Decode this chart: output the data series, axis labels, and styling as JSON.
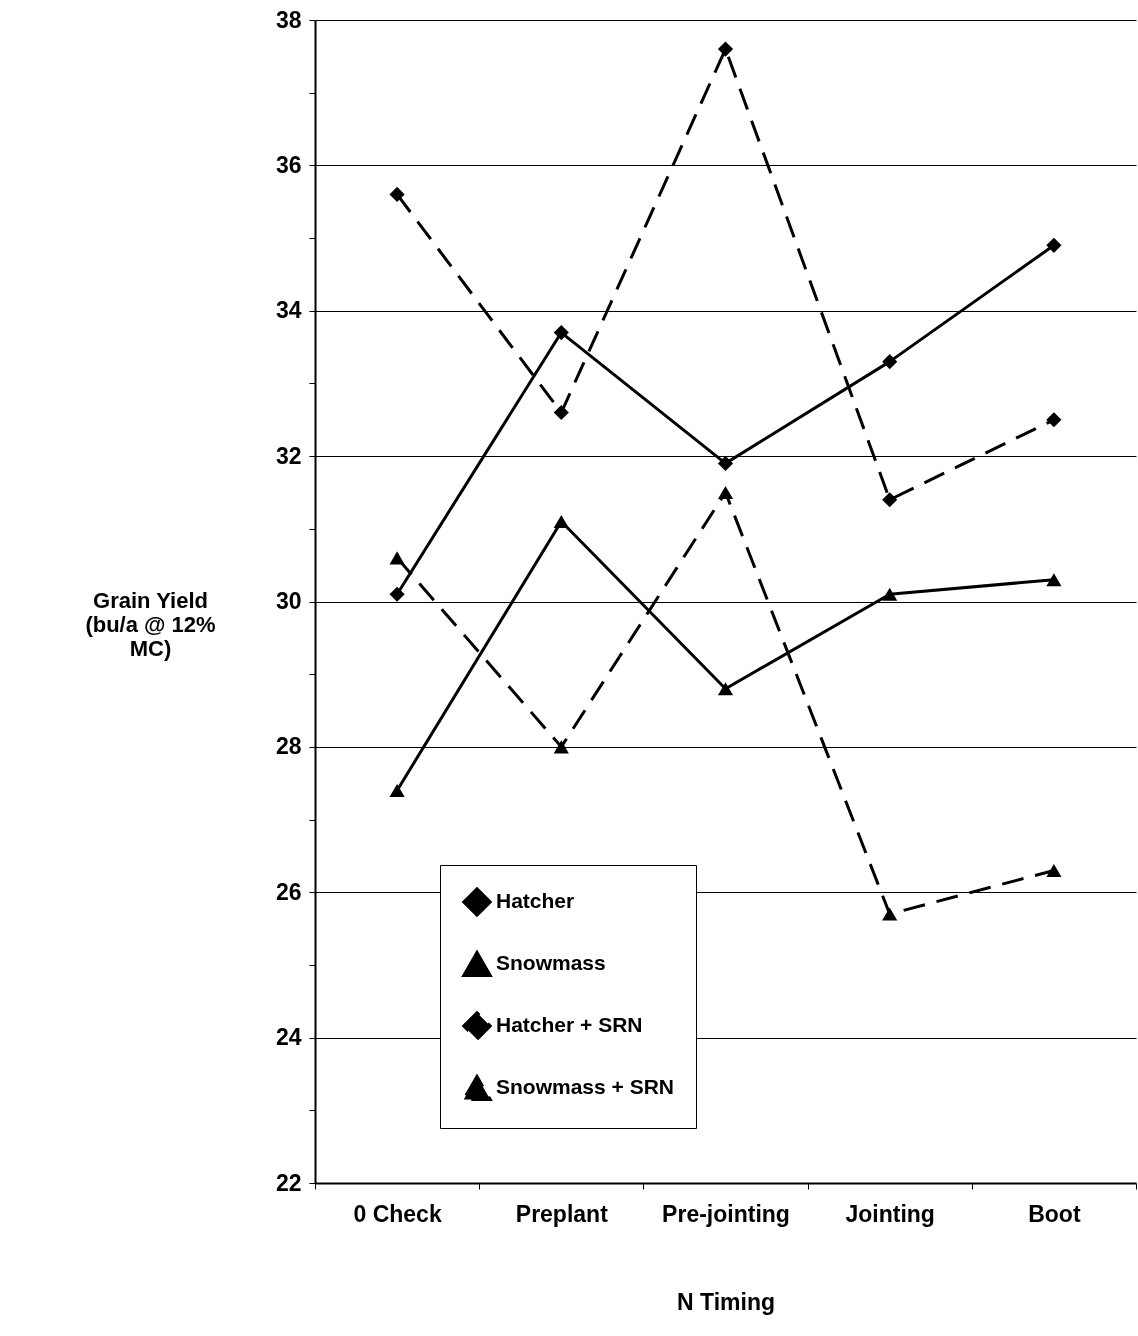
{
  "chart_data": {
    "type": "line",
    "xlabel": "N Timing",
    "ylabel": "Grain Yield (bu/a @ 12% MC)",
    "categories": [
      "0 Check",
      "Preplant",
      "Pre-jointing",
      "Jointing",
      "Boot"
    ],
    "ylim": [
      22,
      38
    ],
    "yticks": [
      22,
      {
        "value": 23,
        "label": null
      },
      24,
      {
        "value": 25,
        "label": null
      },
      26,
      {
        "value": 27,
        "label": null
      },
      28,
      {
        "value": 29,
        "label": null
      },
      30,
      {
        "value": 31,
        "label": null
      },
      32,
      {
        "value": 33,
        "label": null
      },
      34,
      {
        "value": 35,
        "label": null
      },
      36,
      {
        "value": 37,
        "label": null
      },
      38
    ],
    "grid": "y",
    "legend": "bottom",
    "series": [
      {
        "name": "Hatcher",
        "color": "#000000",
        "marker": "diamond",
        "line_style": "solid",
        "values": [
          30.1,
          33.7,
          31.9,
          33.3,
          34.9
        ]
      },
      {
        "name": "Snowmass",
        "color": "#000000",
        "marker": "triangle",
        "line_style": "solid",
        "values": [
          27.4,
          31.1,
          28.8,
          30.1,
          30.3
        ]
      },
      {
        "name": "Hatcher + SRN",
        "color": "#000000",
        "marker": "diamond",
        "line_style": "dashed",
        "values": [
          35.6,
          32.6,
          37.6,
          31.4,
          32.5
        ]
      },
      {
        "name": "Snowmass + SRN",
        "color": "#000000",
        "marker": "triangle",
        "line_style": "dashed",
        "values": [
          30.6,
          28.0,
          31.5,
          25.7,
          26.3
        ]
      }
    ]
  }
}
